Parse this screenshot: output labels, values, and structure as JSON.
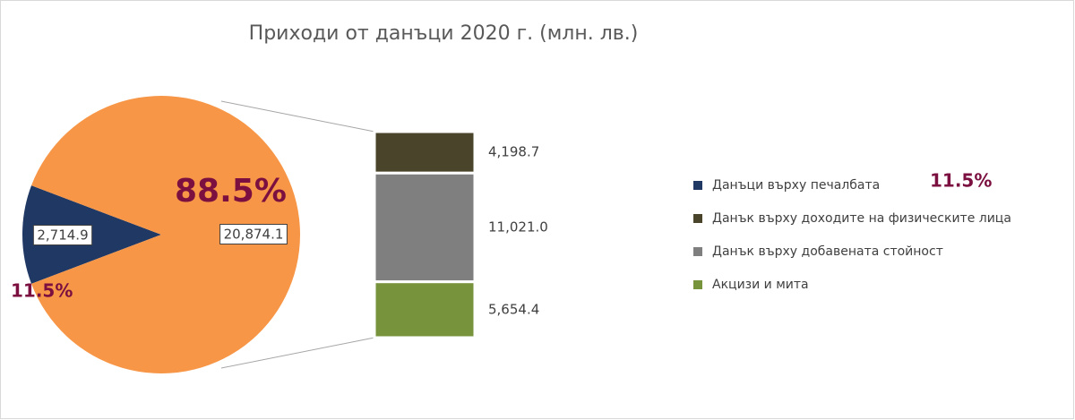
{
  "chart_data": {
    "type": "pie-of-bar",
    "title": "Приходи от данъци 2020 г. (млн. лв.)",
    "pie": {
      "values": [
        2714.9,
        20874.1
      ],
      "value_labels": [
        "2,714.9",
        "20,874.1"
      ],
      "colors": [
        "#1f3864",
        "#f79646"
      ]
    },
    "bar": {
      "values": [
        4198.7,
        11021.0,
        5654.4
      ],
      "value_labels": [
        "4,198.7",
        "11,021.0",
        "5,654.4"
      ],
      "colors": [
        "#4a452a",
        "#7f7f7f",
        "#77933c"
      ]
    },
    "legend": [
      {
        "name": "Данъци върху печалбата",
        "color": "#1f3864"
      },
      {
        "name": "Данък върху доходите на физическите лица",
        "color": "#4a452a"
      },
      {
        "name": "Данък върху добавената стойност",
        "color": "#7f7f7f"
      },
      {
        "name": "Акцизи и мита",
        "color": "#77933c"
      }
    ],
    "annotations": [
      "88.5%",
      "11.5%",
      "11.5%"
    ]
  }
}
